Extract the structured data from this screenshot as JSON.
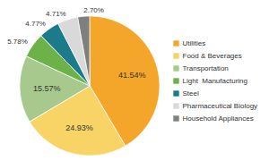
{
  "chart_data": {
    "type": "pie",
    "categories": [
      "Utilities",
      "Food & Beverages",
      "Transportation",
      "Light  Manufacturing",
      "Steel",
      "Pharmaceutical Biology",
      "Household Appliances"
    ],
    "values": [
      41.54,
      24.93,
      15.57,
      5.78,
      4.77,
      4.71,
      2.7
    ],
    "value_labels": [
      "41.54%",
      "24.93%",
      "15.57%",
      "5.78%",
      "4.77%",
      "4.71%",
      "2.70%"
    ],
    "colors": [
      "#f4a62a",
      "#f8d466",
      "#a8c98e",
      "#6db249",
      "#1b7b8b",
      "#d9d9d9",
      "#7f7f7f"
    ],
    "data_labels": true,
    "legend": "right"
  }
}
